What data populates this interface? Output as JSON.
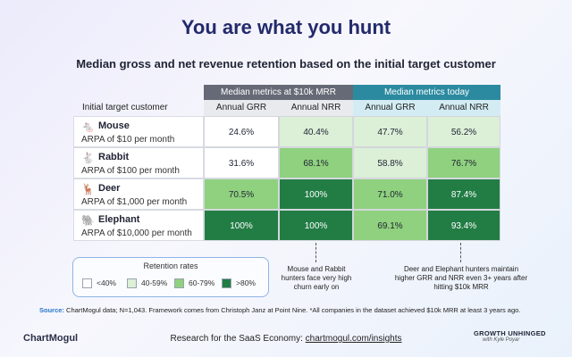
{
  "title": "You are what you hunt",
  "subtitle": "Median gross and net revenue retention based on the initial target customer",
  "chart_data": {
    "type": "table",
    "row_header": "Initial target customer",
    "column_groups": [
      {
        "label": "Median metrics at $10k MRR",
        "color": "#666a76",
        "columns": [
          "Annual GRR",
          "Annual NRR"
        ]
      },
      {
        "label": "Median metrics today",
        "color": "#2b8aa0",
        "columns": [
          "Annual GRR",
          "Annual NRR"
        ]
      }
    ],
    "rows": [
      {
        "icon": "mouse-icon",
        "glyph": "🐁",
        "name": "Mouse",
        "arpa": "ARPA of $10 per month",
        "values": [
          24.6,
          40.4,
          47.7,
          56.2
        ],
        "labels": [
          "24.6%",
          "40.4%",
          "47.7%",
          "56.2%"
        ]
      },
      {
        "icon": "rabbit-icon",
        "glyph": "🐇",
        "name": "Rabbit",
        "arpa": "ARPA of $100 per month",
        "values": [
          31.6,
          68.1,
          58.8,
          76.7
        ],
        "labels": [
          "31.6%",
          "68.1%",
          "58.8%",
          "76.7%"
        ]
      },
      {
        "icon": "deer-icon",
        "glyph": "🦌",
        "name": "Deer",
        "arpa": "ARPA of $1,000 per month",
        "values": [
          70.5,
          100,
          71.0,
          87.4
        ],
        "labels": [
          "70.5%",
          "100%",
          "71.0%",
          "87.4%"
        ]
      },
      {
        "icon": "elephant-icon",
        "glyph": "🐘",
        "name": "Elephant",
        "arpa": "ARPA of $10,000 per month",
        "values": [
          100,
          100,
          69.1,
          93.4
        ],
        "labels": [
          "100%",
          "100%",
          "69.1%",
          "93.4%"
        ]
      }
    ],
    "legend": {
      "title": "Retention rates",
      "bins": [
        {
          "label": "<40%",
          "max": 40,
          "color": "#ffffff"
        },
        {
          "label": "40-59%",
          "max": 60,
          "color": "#dcefd7"
        },
        {
          "label": "60-79%",
          "max": 80,
          "color": "#8fd17e"
        },
        {
          "label": ">80%",
          "max": 1000,
          "color": "#227d45"
        }
      ]
    }
  },
  "notes": {
    "left": "Mouse and Rabbit hunters face very high churn early on",
    "right": "Deer and Elephant hunters maintain higher GRR and NRR even 3+ years after hitting $10k MRR"
  },
  "source": {
    "label": "Source:",
    "text": "ChartMogul data; N=1,043. Framework comes from Christoph Janz at Point Nine. *All companies in the dataset achieved $10k MRR at least 3 years ago."
  },
  "footer": {
    "logo": "ChartMogul",
    "tagline": "Research for the SaaS Economy: ",
    "link": "chartmogul.com/insights",
    "brand": "GROWTH UNHINGED",
    "brand_sub": "with Kyle Poyar"
  }
}
